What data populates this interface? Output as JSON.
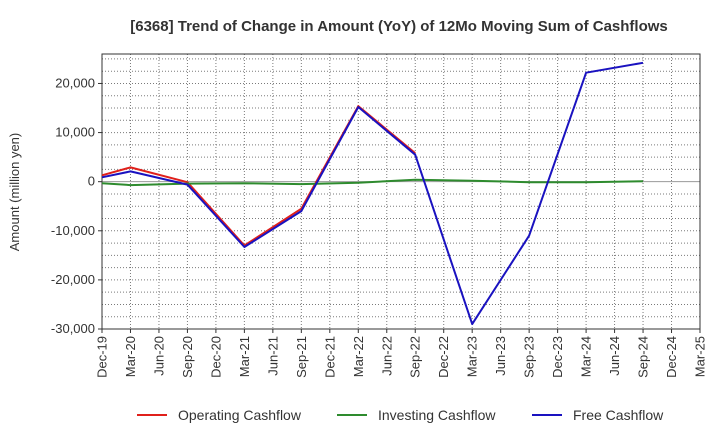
{
  "chart_data": {
    "type": "line",
    "title": "[6368]  Trend of Change in Amount (YoY) of 12Mo Moving Sum of Cashflows",
    "xlabel": "",
    "ylabel": "Amount (million yen)",
    "ylim": [
      -30000,
      26000
    ],
    "yticks": [
      20000,
      10000,
      0,
      -10000,
      -20000,
      -30000
    ],
    "ytick_labels": [
      "20,000",
      "10,000",
      "0",
      "-10,000",
      "-20,000",
      "-30,000"
    ],
    "grid": true,
    "legend_position": "bottom",
    "categories": [
      "Dec-19",
      "Mar-20",
      "Jun-20",
      "Sep-20",
      "Dec-20",
      "Mar-21",
      "Jun-21",
      "Sep-21",
      "Dec-21",
      "Mar-22",
      "Jun-22",
      "Sep-22",
      "Dec-22",
      "Mar-23",
      "Jun-23",
      "Sep-23",
      "Dec-23",
      "Mar-24",
      "Jun-24",
      "Sep-24",
      "Dec-24",
      "Mar-25"
    ],
    "series": [
      {
        "name": "Operating Cashflow",
        "color": "#e0201b",
        "values": [
          1300,
          2900,
          null,
          -100,
          null,
          -13000,
          null,
          -5500,
          null,
          15400,
          null,
          5800,
          null,
          null,
          null,
          null,
          null,
          null,
          null,
          null,
          null,
          null
        ]
      },
      {
        "name": "Investing Cashflow",
        "color": "#2e8b2e",
        "values": [
          -300,
          -700,
          null,
          -400,
          null,
          -300,
          null,
          -500,
          null,
          -200,
          null,
          400,
          null,
          200,
          null,
          -100,
          null,
          -100,
          null,
          100,
          null,
          null
        ]
      },
      {
        "name": "Free Cashflow",
        "color": "#1a12c0",
        "values": [
          900,
          2100,
          null,
          -600,
          null,
          -13300,
          null,
          -6000,
          null,
          15200,
          null,
          5500,
          null,
          -29000,
          null,
          -11000,
          null,
          22200,
          null,
          24200,
          null,
          null
        ]
      }
    ]
  }
}
